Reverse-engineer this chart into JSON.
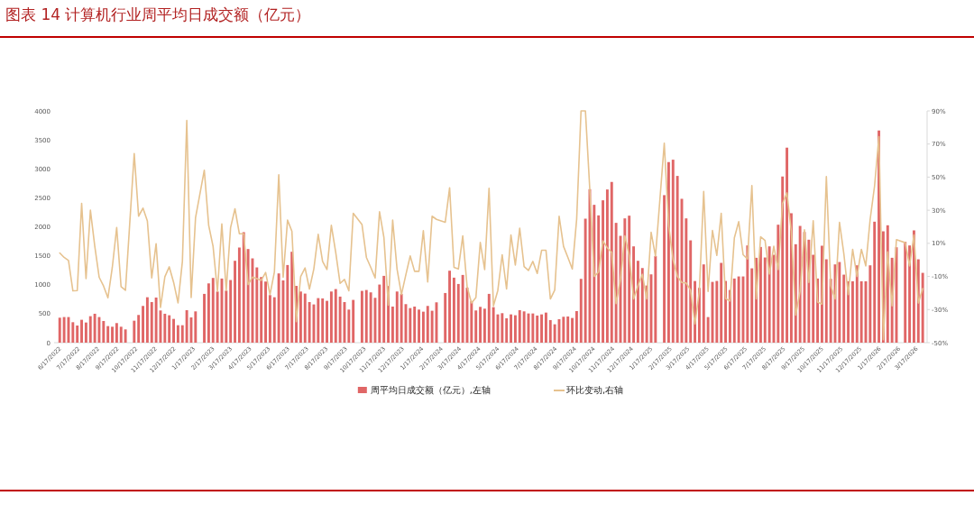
{
  "chart_data": {
    "type": "bar",
    "title": "图表 14 计算机行业周平均日成交额（亿元）",
    "legend": "bottom",
    "xlim": [
      "2022-06-08",
      "2026-04-03"
    ],
    "ylim": [
      0,
      4000
    ],
    "yticks": [
      0,
      500,
      1000,
      1500,
      2000,
      2500,
      3000,
      3500,
      4000
    ],
    "y2lim": [
      -50,
      90
    ],
    "y2ticks": [
      {
        "value": -50,
        "label": "-50%"
      },
      {
        "value": -30,
        "label": "-30%"
      },
      {
        "value": -10,
        "label": "-10%"
      },
      {
        "value": 10,
        "label": "10%"
      },
      {
        "value": 30,
        "label": "30%"
      },
      {
        "value": 50,
        "label": "50%"
      },
      {
        "value": 70,
        "label": "70%"
      },
      {
        "value": 90,
        "label": "90%"
      }
    ],
    "xticks": [
      {
        "value": "2022-06-17",
        "label": "6/17/2022"
      },
      {
        "value": "2022-07-17",
        "label": "7/17/2022"
      },
      {
        "value": "2022-08-17",
        "label": "8/17/2022"
      },
      {
        "value": "2022-09-17",
        "label": "9/17/2022"
      },
      {
        "value": "2022-10-17",
        "label": "10/17/2022"
      },
      {
        "value": "2022-11-17",
        "label": "11/17/2022"
      },
      {
        "value": "2022-12-17",
        "label": "12/17/2022"
      },
      {
        "value": "2023-01-17",
        "label": "1/17/2023"
      },
      {
        "value": "2023-02-17",
        "label": "2/17/2023"
      },
      {
        "value": "2023-03-17",
        "label": "3/17/2023"
      },
      {
        "value": "2023-04-17",
        "label": "4/17/2023"
      },
      {
        "value": "2023-05-17",
        "label": "5/17/2023"
      },
      {
        "value": "2023-06-17",
        "label": "6/17/2023"
      },
      {
        "value": "2023-07-17",
        "label": "7/17/2023"
      },
      {
        "value": "2023-08-17",
        "label": "8/17/2023"
      },
      {
        "value": "2023-09-17",
        "label": "9/17/2023"
      },
      {
        "value": "2023-10-17",
        "label": "10/17/2023"
      },
      {
        "value": "2023-11-17",
        "label": "11/17/2023"
      },
      {
        "value": "2023-12-17",
        "label": "12/17/2023"
      },
      {
        "value": "2024-01-17",
        "label": "1/17/2024"
      },
      {
        "value": "2024-02-17",
        "label": "2/17/2024"
      },
      {
        "value": "2024-03-17",
        "label": "3/17/2024"
      },
      {
        "value": "2024-04-17",
        "label": "4/17/2024"
      },
      {
        "value": "2024-05-17",
        "label": "5/17/2024"
      },
      {
        "value": "2024-06-17",
        "label": "6/17/2024"
      },
      {
        "value": "2024-07-17",
        "label": "7/17/2024"
      },
      {
        "value": "2024-08-17",
        "label": "8/17/2024"
      },
      {
        "value": "2024-09-17",
        "label": "9/17/2024"
      },
      {
        "value": "2024-10-17",
        "label": "10/17/2024"
      },
      {
        "value": "2024-11-17",
        "label": "11/17/2024"
      },
      {
        "value": "2024-12-17",
        "label": "12/17/2024"
      },
      {
        "value": "2025-01-17",
        "label": "1/17/2025"
      },
      {
        "value": "2025-02-17",
        "label": "2/17/2025"
      },
      {
        "value": "2025-03-17",
        "label": "3/17/2025"
      },
      {
        "value": "2025-04-17",
        "label": "4/17/2025"
      },
      {
        "value": "2025-05-17",
        "label": "5/17/2025"
      },
      {
        "value": "2025-06-17",
        "label": "6/17/2025"
      },
      {
        "value": "2025-07-17",
        "label": "7/17/2025"
      },
      {
        "value": "2025-08-17",
        "label": "8/17/2025"
      },
      {
        "value": "2025-09-17",
        "label": "9/17/2025"
      },
      {
        "value": "2025-10-17",
        "label": "10/17/2025"
      },
      {
        "value": "2025-11-17",
        "label": "11/17/2025"
      },
      {
        "value": "2025-12-17",
        "label": "12/17/2025"
      },
      {
        "value": "2026-01-17",
        "label": "1/17/2026"
      },
      {
        "value": "2026-02-17",
        "label": "2/17/2026"
      },
      {
        "value": "2026-03-17",
        "label": "3/17/2026"
      }
    ],
    "x": [
      "2022-06-17",
      "2022-06-24",
      "2022-07-01",
      "2022-07-08",
      "2022-07-15",
      "2022-07-22",
      "2022-07-29",
      "2022-08-05",
      "2022-08-12",
      "2022-08-19",
      "2022-08-26",
      "2022-09-02",
      "2022-09-09",
      "2022-09-16",
      "2022-09-23",
      "2022-09-30",
      "2022-10-14",
      "2022-10-21",
      "2022-10-28",
      "2022-11-04",
      "2022-11-11",
      "2022-11-18",
      "2022-11-25",
      "2022-12-02",
      "2022-12-09",
      "2022-12-16",
      "2022-12-23",
      "2022-12-30",
      "2023-01-06",
      "2023-01-13",
      "2023-01-20",
      "2023-02-03",
      "2023-02-10",
      "2023-02-17",
      "2023-02-24",
      "2023-03-03",
      "2023-03-10",
      "2023-03-17",
      "2023-03-24",
      "2023-03-31",
      "2023-04-07",
      "2023-04-14",
      "2023-04-21",
      "2023-04-28",
      "2023-05-05",
      "2023-05-12",
      "2023-05-19",
      "2023-05-26",
      "2023-06-02",
      "2023-06-09",
      "2023-06-16",
      "2023-06-23",
      "2023-06-30",
      "2023-07-07",
      "2023-07-14",
      "2023-07-21",
      "2023-07-28",
      "2023-08-04",
      "2023-08-11",
      "2023-08-18",
      "2023-08-25",
      "2023-09-01",
      "2023-09-08",
      "2023-09-15",
      "2023-09-22",
      "2023-09-29",
      "2023-10-13",
      "2023-10-20",
      "2023-10-27",
      "2023-11-03",
      "2023-11-10",
      "2023-11-17",
      "2023-11-24",
      "2023-12-01",
      "2023-12-08",
      "2023-12-15",
      "2023-12-22",
      "2023-12-29",
      "2024-01-05",
      "2024-01-12",
      "2024-01-19",
      "2024-01-26",
      "2024-02-02",
      "2024-02-09",
      "2024-02-23",
      "2024-03-01",
      "2024-03-08",
      "2024-03-15",
      "2024-03-22",
      "2024-03-29",
      "2024-04-05",
      "2024-04-12",
      "2024-04-19",
      "2024-04-26",
      "2024-05-03",
      "2024-05-10",
      "2024-05-17",
      "2024-05-24",
      "2024-05-31",
      "2024-06-07",
      "2024-06-14",
      "2024-06-21",
      "2024-06-28",
      "2024-07-05",
      "2024-07-12",
      "2024-07-19",
      "2024-07-26",
      "2024-08-02",
      "2024-08-09",
      "2024-08-16",
      "2024-08-23",
      "2024-08-30",
      "2024-09-06",
      "2024-09-13",
      "2024-09-20",
      "2024-09-27",
      "2024-10-04",
      "2024-10-11",
      "2024-10-18",
      "2024-10-25",
      "2024-11-01",
      "2024-11-08",
      "2024-11-15",
      "2024-11-22",
      "2024-11-29",
      "2024-12-06",
      "2024-12-13",
      "2024-12-20",
      "2024-12-27",
      "2025-01-03",
      "2025-01-10",
      "2025-01-17",
      "2025-01-24",
      "2025-02-07",
      "2025-02-14",
      "2025-02-21",
      "2025-02-28",
      "2025-03-07",
      "2025-03-14",
      "2025-03-21",
      "2025-03-28",
      "2025-04-04",
      "2025-04-11",
      "2025-04-18",
      "2025-04-25",
      "2025-05-02",
      "2025-05-09",
      "2025-05-16",
      "2025-05-23",
      "2025-05-30",
      "2025-06-06",
      "2025-06-13",
      "2025-06-20",
      "2025-06-27",
      "2025-07-04",
      "2025-07-11",
      "2025-07-18",
      "2025-07-25",
      "2025-08-01",
      "2025-08-08",
      "2025-08-15",
      "2025-08-22",
      "2025-08-29",
      "2025-09-05",
      "2025-09-12",
      "2025-09-19",
      "2025-09-26",
      "2025-10-03",
      "2025-10-10",
      "2025-10-17",
      "2025-10-24",
      "2025-10-31",
      "2025-11-07",
      "2025-11-14",
      "2025-11-21",
      "2025-11-28",
      "2025-12-05",
      "2025-12-12",
      "2025-12-19",
      "2025-12-26",
      "2026-01-02",
      "2026-01-09",
      "2026-01-16",
      "2026-01-23",
      "2026-01-30",
      "2026-02-06",
      "2026-02-13",
      "2026-02-27",
      "2026-03-06",
      "2026-03-13",
      "2026-03-20",
      "2026-03-27"
    ],
    "series": [
      {
        "name": "周平均日成交额（亿元）,左轴",
        "color": "#e06666",
        "values": [
          431,
          442,
          442,
          353,
          296,
          395,
          348,
          457,
          499,
          442,
          374,
          286,
          275,
          338,
          275,
          229,
          379,
          478,
          634,
          784,
          701,
          779,
          556,
          499,
          473,
          410,
          301,
          301,
          561,
          436,
          540,
          842,
          1023,
          1117,
          883,
          1107,
          899,
          1081,
          1413,
          1642,
          1907,
          1616,
          1455,
          1299,
          1133,
          1055,
          821,
          784,
          1195,
          1075,
          1340,
          1569,
          980,
          883,
          847,
          701,
          660,
          769,
          764,
          722,
          883,
          925,
          795,
          701,
          571,
          738,
          894,
          909,
          868,
          774,
          1003,
          1153,
          977,
          623,
          883,
          842,
          665,
          597,
          623,
          571,
          535,
          634,
          551,
          696,
          857,
          1242,
          1122,
          1013,
          1169,
          951,
          717,
          556,
          618,
          587,
          842,
          613,
          488,
          509,
          421,
          488,
          473,
          561,
          540,
          504,
          504,
          468,
          488,
          519,
          390,
          317,
          405,
          447,
          452,
          426,
          545,
          1101,
          2140,
          2649,
          2379,
          2197,
          2457,
          2644,
          2774,
          2068,
          1844,
          2145,
          2192,
          1662,
          1413,
          1288,
          986,
          1179,
          1496,
          2546,
          3117,
          3158,
          2878,
          2483,
          2145,
          1766,
          1064,
          945,
          1351,
          442,
          1049,
          1065,
          1377,
          1065,
          909,
          1107,
          1143,
          1143,
          1678,
          1283,
          1465,
          1652,
          1470,
          1662,
          1517,
          2036,
          2868,
          3366,
          2234,
          1699,
          2015,
          1911,
          1777,
          1517,
          1107,
          1673,
          1439,
          1101,
          1351,
          1392,
          1174,
          1060,
          1060,
          1335,
          1060,
          1060,
          1335,
          2088,
          3662,
          1922,
          2026,
          1465,
          1647,
          1740,
          1678,
          1938,
          1439,
          1205
        ]
      },
      {
        "name": "环比变动,右轴",
        "type": "line",
        "axis": "y2",
        "color": "#e6c28f",
        "values": [
          4.2,
          1.5,
          -0.4,
          -18.7,
          -18.5,
          34.2,
          -11.3,
          30.0,
          8.2,
          -10.5,
          -15.8,
          -22.9,
          -4.5,
          19.6,
          -16.2,
          -18.4,
          64.2,
          26.4,
          31.3,
          23.6,
          -10.9,
          9.8,
          -28.7,
          -10.2,
          -4.2,
          -13.6,
          -26.0,
          -0.9,
          84.2,
          -22.7,
          25.5,
          54.2,
          20.9,
          8.2,
          -19.1,
          21.8,
          -18.5,
          19.5,
          30.9,
          15.8,
          15.8,
          -14.9,
          -10.4,
          -11.3,
          -12.4,
          -7.6,
          -20.9,
          -7.3,
          51.5,
          -10.5,
          24.0,
          17.3,
          -37.3,
          -10.0,
          -4.9,
          -17.6,
          -5.5,
          15.5,
          -0.9,
          -5.8,
          20.9,
          4.5,
          -14.2,
          -11.8,
          -18.7,
          28.2,
          21.3,
          1.5,
          -4.5,
          -10.9,
          29.1,
          13.6,
          -27.3,
          24.0,
          -5.5,
          -20.9,
          -9.1,
          2.4,
          -6.9,
          -6.9,
          17.6,
          -13.3,
          26.4,
          24.5,
          22.7,
          43.6,
          -4.5,
          -5.5,
          14.5,
          -16.4,
          -26.0,
          -22.7,
          10.6,
          -5.8,
          43.3,
          -27.8,
          -18.5,
          3.1,
          -17.6,
          15.1,
          -3.1,
          19.1,
          -4.0,
          -6.4,
          -0.9,
          -8.2,
          5.8,
          5.8,
          -23.6,
          -18.2,
          26.4,
          8.2,
          1.5,
          -5.5,
          24.5,
          90,
          90,
          42.7,
          -10.0,
          -7.3,
          11.5,
          7.3,
          4.5,
          -26.4,
          -11.8,
          14.5,
          2.7,
          -23.6,
          -15.5,
          -8.7,
          -23.6,
          16.7,
          2.2,
          70.5,
          20.9,
          0.4,
          -10.0,
          -13.6,
          -14.0,
          -18.2,
          -38.7,
          -19.1,
          41.3,
          -19.1,
          17.8,
          2.7,
          28.2,
          -23.3,
          -24.9,
          13.3,
          23.1,
          3.1,
          0.6,
          44.9,
          -23.6,
          14.0,
          11.8,
          -8.5,
          8.2,
          -5.8,
          34.0,
          40.5,
          17.3,
          -33.3,
          -19.1,
          18.2,
          -13.6,
          23.6,
          -25.5,
          -26.7,
          50.4,
          -15.5,
          -23.6,
          22.7,
          3.6,
          -20.9,
          6.4,
          -10.0,
          6.4,
          -3.6,
          24.5,
          44.5,
          74.5,
          -48.2,
          4.9,
          -27.8,
          12.2,
          10.4,
          -3.6,
          15.1,
          -26.0,
          -17.3
        ]
      }
    ]
  }
}
